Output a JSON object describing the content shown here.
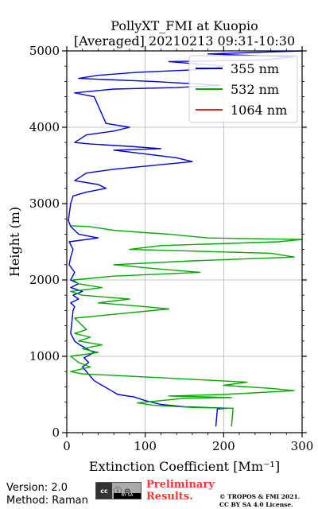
{
  "chart_data": {
    "type": "line",
    "title": "PollyXT_FMI at Kuopio",
    "subtitle": "[Averaged] 20210213 09:31-10:30",
    "xlabel": "Extinction Coefficient [Mm⁻¹]",
    "ylabel": "Height (m)",
    "xlim": [
      0,
      300
    ],
    "ylim": [
      0,
      5000
    ],
    "xticks": [
      "0",
      "100",
      "200",
      "300"
    ],
    "yticks": [
      "0",
      "1000",
      "2000",
      "3000",
      "4000",
      "5000"
    ],
    "grid": true,
    "legend_position": "top-right",
    "series": [
      {
        "name": "355 nm",
        "color": "#0000dd",
        "points": [
          [
            190,
            80
          ],
          [
            192,
            310
          ],
          [
            205,
            320
          ],
          [
            150,
            340
          ],
          [
            120,
            370
          ],
          [
            100,
            420
          ],
          [
            85,
            470
          ],
          [
            65,
            500
          ],
          [
            55,
            560
          ],
          [
            45,
            620
          ],
          [
            35,
            680
          ],
          [
            30,
            740
          ],
          [
            25,
            800
          ],
          [
            20,
            860
          ],
          [
            28,
            920
          ],
          [
            22,
            980
          ],
          [
            35,
            1050
          ],
          [
            25,
            1100
          ],
          [
            15,
            1160
          ],
          [
            10,
            1200
          ],
          [
            5,
            1300
          ],
          [
            8,
            1600
          ],
          [
            10,
            1650
          ],
          [
            5,
            1700
          ],
          [
            15,
            1750
          ],
          [
            8,
            1800
          ],
          [
            20,
            1850
          ],
          [
            5,
            1900
          ],
          [
            15,
            1950
          ],
          [
            5,
            2000
          ],
          [
            10,
            2100
          ],
          [
            3,
            2200
          ],
          [
            5,
            2300
          ],
          [
            8,
            2400
          ],
          [
            3,
            2500
          ],
          [
            40,
            2550
          ],
          [
            15,
            2600
          ],
          [
            5,
            2700
          ],
          [
            2,
            2780
          ],
          [
            5,
            3000
          ],
          [
            8,
            3100
          ],
          [
            25,
            3150
          ],
          [
            50,
            3200
          ],
          [
            40,
            3250
          ],
          [
            10,
            3300
          ],
          [
            25,
            3400
          ],
          [
            60,
            3450
          ],
          [
            160,
            3550
          ],
          [
            140,
            3600
          ],
          [
            100,
            3650
          ],
          [
            60,
            3700
          ],
          [
            120,
            3720
          ],
          [
            80,
            3750
          ],
          [
            30,
            3780
          ],
          [
            10,
            3800
          ],
          [
            25,
            3900
          ],
          [
            60,
            3950
          ],
          [
            80,
            4000
          ],
          [
            50,
            4050
          ],
          [
            35,
            4400
          ],
          [
            10,
            4450
          ],
          [
            60,
            4500
          ],
          [
            140,
            4520
          ],
          [
            195,
            4550
          ],
          [
            110,
            4600
          ],
          [
            15,
            4640
          ],
          [
            40,
            4680
          ],
          [
            90,
            4720
          ],
          [
            180,
            4760
          ],
          [
            200,
            4800
          ],
          [
            130,
            4860
          ],
          [
            250,
            4880
          ],
          [
            290,
            4920
          ],
          [
            180,
            4960
          ],
          [
            300,
            5000
          ]
        ]
      },
      {
        "name": "532 nm",
        "color": "#00aa00",
        "points": [
          [
            210,
            80
          ],
          [
            212,
            320
          ],
          [
            160,
            330
          ],
          [
            110,
            360
          ],
          [
            90,
            390
          ],
          [
            120,
            420
          ],
          [
            150,
            450
          ],
          [
            210,
            460
          ],
          [
            130,
            480
          ],
          [
            200,
            500
          ],
          [
            290,
            550
          ],
          [
            260,
            580
          ],
          [
            200,
            620
          ],
          [
            230,
            660
          ],
          [
            120,
            720
          ],
          [
            20,
            770
          ],
          [
            5,
            800
          ],
          [
            30,
            860
          ],
          [
            15,
            920
          ],
          [
            5,
            1000
          ],
          [
            40,
            1050
          ],
          [
            20,
            1100
          ],
          [
            45,
            1150
          ],
          [
            15,
            1200
          ],
          [
            30,
            1250
          ],
          [
            10,
            1300
          ],
          [
            25,
            1350
          ],
          [
            10,
            1500
          ],
          [
            60,
            1550
          ],
          [
            130,
            1620
          ],
          [
            100,
            1650
          ],
          [
            40,
            1700
          ],
          [
            80,
            1750
          ],
          [
            20,
            1800
          ],
          [
            5,
            1850
          ],
          [
            45,
            1900
          ],
          [
            15,
            1950
          ],
          [
            8,
            2000
          ],
          [
            60,
            2050
          ],
          [
            170,
            2100
          ],
          [
            110,
            2150
          ],
          [
            60,
            2200
          ],
          [
            160,
            2250
          ],
          [
            290,
            2300
          ],
          [
            260,
            2350
          ],
          [
            80,
            2400
          ],
          [
            120,
            2450
          ],
          [
            270,
            2500
          ],
          [
            300,
            2530
          ],
          [
            180,
            2550
          ],
          [
            130,
            2600
          ],
          [
            100,
            2620
          ],
          [
            60,
            2650
          ],
          [
            28,
            2700
          ],
          [
            5,
            2710
          ]
        ]
      },
      {
        "name": "1064 nm",
        "color": "#dd2222",
        "points": []
      }
    ]
  },
  "footer": {
    "version": "Version: 2.0",
    "method": "Method: Raman",
    "cc_label": "cc",
    "cc_icons": "ⓘ ⊜",
    "cc_text": "BY SA",
    "preliminary_line1": "Preliminary",
    "preliminary_line2": "Results.",
    "copyright_line1": "© TROPOS & FMI 2021.",
    "copyright_line2": "CC BY SA 4.0 License."
  }
}
